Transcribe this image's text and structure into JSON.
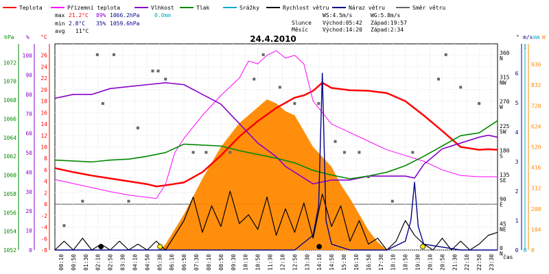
{
  "chart_data": {
    "type": "line",
    "title": "24.4.2010",
    "legend": [
      {
        "name": "Teplota",
        "color": "#ff0000"
      },
      {
        "name": "Přízemní teplota",
        "color": "#ff00ff"
      },
      {
        "name": "Vlhkost",
        "color": "#8800cc"
      },
      {
        "name": "Tlak",
        "color": "#008800"
      },
      {
        "name": "Srážky",
        "color": "#00aacc"
      },
      {
        "name": "Rychlost větru",
        "color": "#000000"
      },
      {
        "name": "Náraz větru",
        "color": "#000088"
      },
      {
        "name": "Směr větru",
        "color": "#666666"
      }
    ],
    "stats": {
      "max": {
        "label": "max",
        "temp": "21.2°C",
        "hum": "89%",
        "press": "1066.2hPa",
        "rain": "0.0mm"
      },
      "min": {
        "label": "min",
        "temp": "2.8°C",
        "hum": "35%",
        "press": "1059.6hPa"
      },
      "avg": {
        "label": "avg",
        "temp": "11°C"
      }
    },
    "wind_info": {
      "ws": "WS:4.5m/s",
      "wg": "WG:5.8m/s"
    },
    "sun": {
      "label": "Slunce",
      "rise": "Východ:05:42",
      "set": "Západ:19:57"
    },
    "moon": {
      "label": "Měsíc",
      "rise": "Východ:14:20",
      "set": "Západ:2:34"
    },
    "axis_units": {
      "pressure": "hPa",
      "humidity": "%",
      "temp": "°C",
      "direction": "°",
      "wind_speed": "m/s",
      "rain": "mm",
      "radiation": "W",
      "time": "čas"
    },
    "pressure_ticks": [
      "1052",
      "1054",
      "1056",
      "1058",
      "1060",
      "1062",
      "1064",
      "1066",
      "1068",
      "1070",
      "1072"
    ],
    "humidity_ticks": [
      "0",
      "10",
      "20",
      "30",
      "40",
      "50",
      "60",
      "70",
      "80",
      "90",
      "100"
    ],
    "temp_ticks": [
      "-8",
      "-6",
      "-4",
      "-2",
      "0",
      "2",
      "4",
      "6",
      "8",
      "10",
      "12",
      "14",
      "16",
      "18",
      "20",
      "22",
      "24",
      "26"
    ],
    "direction_ticks": [
      {
        "deg": "0",
        "dir": "N"
      },
      {
        "deg": "45",
        "dir": "NE"
      },
      {
        "deg": "90",
        "dir": "E"
      },
      {
        "deg": "135",
        "dir": "SE"
      },
      {
        "deg": "180",
        "dir": "S"
      },
      {
        "deg": "225",
        "dir": "SW"
      },
      {
        "deg": "270",
        "dir": "W"
      },
      {
        "deg": "315",
        "dir": "NW"
      },
      {
        "deg": "360",
        "dir": "N"
      }
    ],
    "wind_ticks": [
      "0",
      "1",
      "2",
      "3",
      "4",
      "5",
      "6"
    ],
    "rain_ticks": [
      "0",
      "1"
    ],
    "radiation_ticks": [
      "0",
      "104",
      "208",
      "312",
      "416",
      "520",
      "624",
      "728",
      "832",
      "936"
    ],
    "x_labels": [
      "00:10",
      "00:50",
      "01:30",
      "02:10",
      "02:50",
      "03:30",
      "04:10",
      "04:50",
      "05:30",
      "06:10",
      "06:50",
      "07:30",
      "08:10",
      "08:50",
      "09:30",
      "10:10",
      "10:50",
      "11:30",
      "12:10",
      "12:50",
      "13:30",
      "14:10",
      "14:50",
      "15:30",
      "16:10",
      "16:50",
      "17:30",
      "18:10",
      "18:50",
      "19:30",
      "20:10",
      "20:50",
      "21:30",
      "22:10",
      "22:50",
      "23:30"
    ],
    "ranges": {
      "x": [
        0,
        24
      ],
      "temp": [
        -8,
        28
      ],
      "humidity": [
        0,
        106
      ],
      "pressure": [
        1052,
        1074
      ],
      "direction": [
        0,
        380
      ],
      "wind": [
        0,
        7
      ],
      "radiation": [
        0,
        1040
      ]
    },
    "grid": true,
    "series": [
      {
        "name": "Teplota",
        "unit": "°C",
        "color": "#ff0000",
        "x": [
          0,
          1,
          2,
          3,
          4,
          5,
          5.5,
          6,
          7,
          8,
          9,
          10,
          11,
          12,
          13,
          13.5,
          14,
          14.5,
          15,
          16,
          17,
          18,
          19,
          20,
          21,
          22,
          23,
          23.5,
          24
        ],
        "y": [
          6.3,
          5.6,
          5.0,
          4.5,
          4.0,
          3.5,
          3.1,
          3.3,
          3.8,
          5.6,
          8.5,
          11.8,
          14.5,
          16.8,
          18.6,
          19.0,
          19.8,
          21.2,
          20.3,
          19.9,
          19.8,
          19.4,
          18.0,
          15.5,
          12.8,
          10.0,
          9.5,
          9.6,
          9.5
        ]
      },
      {
        "name": "Přízemní teplota",
        "unit": "°C",
        "color": "#ff00ff",
        "x": [
          0,
          1,
          2,
          3,
          4,
          5,
          5.5,
          6,
          6.5,
          7,
          8,
          9,
          10,
          10.5,
          11,
          11.5,
          12,
          12.5,
          13,
          13.5,
          14,
          14.5,
          15,
          16,
          17,
          18,
          19,
          20,
          21,
          22,
          23,
          24
        ],
        "y": [
          4.3,
          3.6,
          2.9,
          2.2,
          1.6,
          1.2,
          1.0,
          3.5,
          9.0,
          11.5,
          15.5,
          19.0,
          22.0,
          25.0,
          24.5,
          26.0,
          26.8,
          25.5,
          26.0,
          24.5,
          18.0,
          16.0,
          14.0,
          12.5,
          11.0,
          9.5,
          8.5,
          7.5,
          6.0,
          5.0,
          4.8,
          4.8
        ]
      },
      {
        "name": "Vlhkost",
        "unit": "%",
        "color": "#8800cc",
        "x": [
          0,
          0.5,
          1,
          2,
          3,
          4,
          5,
          6,
          7,
          8,
          9,
          10,
          11,
          12,
          12.5,
          13,
          13.5,
          14,
          14.5,
          15,
          16,
          17,
          18,
          19,
          19.5,
          20,
          21,
          22,
          23,
          23.5,
          24
        ],
        "y": [
          78,
          79,
          80,
          80,
          83,
          84,
          85,
          86,
          85,
          80,
          75,
          65,
          55,
          48,
          43,
          40,
          37,
          34,
          35,
          36,
          36,
          38,
          38,
          38,
          37,
          44,
          52,
          55,
          58,
          59,
          58
        ]
      },
      {
        "name": "Tlak",
        "unit": "hPa",
        "color": "#008800",
        "x": [
          0,
          1,
          2,
          3,
          4,
          5,
          6,
          7,
          8,
          9,
          10,
          11,
          12,
          13,
          14,
          15,
          16,
          17,
          18,
          19,
          20,
          21,
          22,
          23,
          24
        ],
        "y": [
          1061.6,
          1061.5,
          1061.4,
          1061.6,
          1061.7,
          1062.0,
          1062.4,
          1063.3,
          1063.2,
          1063.1,
          1062.6,
          1062.2,
          1061.8,
          1061.3,
          1060.5,
          1060.0,
          1059.6,
          1059.9,
          1060.3,
          1061.0,
          1062.0,
          1063.1,
          1064.2,
          1064.5,
          1065.8
        ]
      },
      {
        "name": "Rychlost větru",
        "unit": "m/s",
        "color": "#000000",
        "x": [
          0,
          0.5,
          1,
          1.5,
          2,
          2.5,
          3,
          3.5,
          4,
          4.5,
          5,
          5.5,
          6,
          6.5,
          7,
          7.5,
          8,
          8.5,
          9,
          9.5,
          10,
          10.5,
          11,
          11.5,
          12,
          12.5,
          13,
          13.5,
          14,
          14.5,
          15,
          15.5,
          16,
          16.5,
          17,
          17.5,
          18,
          18.5,
          19,
          19.5,
          20,
          20.5,
          21,
          21.5,
          22,
          22.5,
          23,
          23.5,
          24
        ],
        "y": [
          0,
          0.3,
          0,
          0.4,
          0,
          0.2,
          0,
          0.3,
          0,
          0.2,
          0,
          0.3,
          0,
          0.5,
          1.0,
          1.8,
          0.6,
          1.5,
          0.8,
          2.0,
          0.9,
          1.2,
          0.7,
          1.8,
          0.5,
          1.4,
          0.6,
          1.6,
          0.4,
          1.9,
          0.8,
          1.5,
          0.3,
          1.0,
          0.2,
          0.4,
          0,
          0.3,
          1.0,
          0.5,
          0.2,
          0,
          0.4,
          0,
          0.3,
          0,
          0.2,
          0.5,
          0.6
        ]
      },
      {
        "name": "Náraz větru",
        "unit": "m/s",
        "color": "#000088",
        "x": [
          0,
          2,
          4,
          6,
          8,
          10,
          12,
          13,
          14,
          14.3,
          14.5,
          14.7,
          15,
          16,
          17,
          18,
          19,
          19.3,
          19.5,
          19.7,
          20,
          22,
          24
        ],
        "y": [
          0,
          0,
          0,
          0,
          0,
          0,
          0,
          0,
          0.5,
          1.5,
          6.0,
          1.0,
          0.2,
          0,
          0,
          0,
          0.3,
          1.0,
          2.3,
          0.8,
          0.2,
          0,
          0
        ]
      },
      {
        "name": "Směr větru",
        "unit": "°",
        "color": "#666666",
        "x": [
          0.5,
          1.5,
          2.3,
          2.6,
          3.2,
          4.0,
          4.5,
          5.3,
          5.6,
          6.0,
          7.5,
          8.2,
          9.5,
          10.8,
          11.3,
          12.2,
          13.0,
          14.3,
          15.2,
          15.7,
          16.5,
          17.0,
          18.3,
          19.4,
          20.8,
          21.2,
          22.0,
          23.0
        ],
        "y": [
          45,
          90,
          360,
          270,
          360,
          90,
          225,
          330,
          330,
          315,
          180,
          180,
          180,
          315,
          360,
          300,
          270,
          270,
          200,
          180,
          180,
          135,
          90,
          180,
          315,
          360,
          300,
          270
        ]
      }
    ],
    "radiation": {
      "name": "Radiation",
      "unit": "W",
      "color": "#ff8800",
      "x": [
        5.7,
        6,
        7,
        8,
        9,
        10,
        10.5,
        11,
        11.5,
        12,
        12.5,
        13,
        13.5,
        14,
        14.5,
        15,
        15.5,
        16,
        16.5,
        17,
        17.5,
        18
      ],
      "y": [
        0,
        30,
        180,
        360,
        520,
        640,
        680,
        720,
        760,
        740,
        700,
        680,
        600,
        520,
        470,
        420,
        330,
        260,
        180,
        100,
        40,
        0
      ]
    }
  }
}
